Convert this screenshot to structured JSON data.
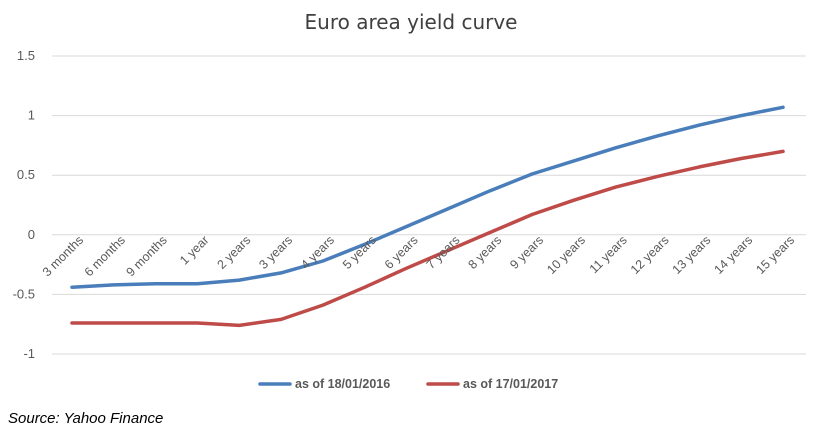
{
  "chart_data": {
    "type": "line",
    "title": "Euro area yield curve",
    "categories": [
      "3 months",
      "6 months",
      "9 months",
      "1 year",
      "2 years",
      "3 years",
      "4 years",
      "5 years",
      "6 years",
      "7 years",
      "8 years",
      "9 years",
      "10 years",
      "11 years",
      "12 years",
      "13 years",
      "14 years",
      "15 years"
    ],
    "series": [
      {
        "name": "as of 18/01/2016",
        "color": "#4a7ebb",
        "values": [
          -0.44,
          -0.42,
          -0.41,
          -0.41,
          -0.38,
          -0.32,
          -0.22,
          -0.08,
          0.07,
          0.22,
          0.37,
          0.51,
          0.62,
          0.73,
          0.83,
          0.92,
          1.0,
          1.07
        ]
      },
      {
        "name": "as of 17/01/2017",
        "color": "#be4b48",
        "values": [
          -0.74,
          -0.74,
          -0.74,
          -0.74,
          -0.76,
          -0.71,
          -0.59,
          -0.44,
          -0.28,
          -0.13,
          0.02,
          0.17,
          0.29,
          0.4,
          0.49,
          0.57,
          0.64,
          0.7
        ]
      }
    ],
    "ylim": [
      -1,
      1.5
    ],
    "yticks": [
      "1.5",
      "1",
      "0.5",
      "0",
      "-0.5",
      "-1"
    ],
    "ytick_values": [
      1.5,
      1,
      0.5,
      0,
      -0.5,
      -1
    ],
    "grid": true,
    "legend_position": "bottom"
  },
  "source_note": "Source: Yahoo Finance"
}
